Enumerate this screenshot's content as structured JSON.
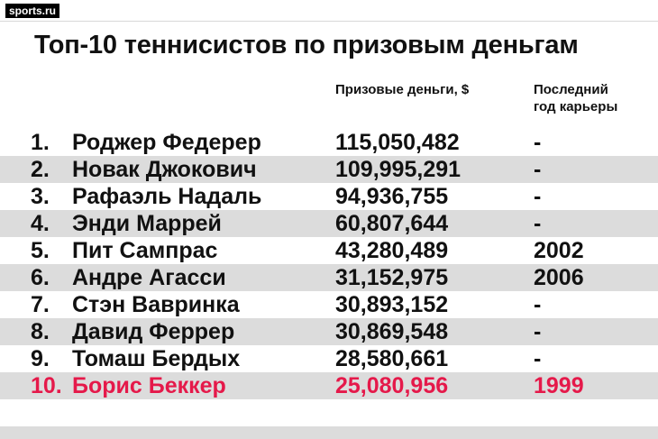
{
  "brand": {
    "logo_text": "sports.ru"
  },
  "title": "Топ-10 теннисистов по призовым деньгам",
  "columns": {
    "prize": "Призовые деньги, $",
    "last_year_line1": "Последний",
    "last_year_line2": "год карьеры"
  },
  "rows": [
    {
      "rank": "1.",
      "name": "Роджер Федерер",
      "prize": "115,050,482",
      "year": "-"
    },
    {
      "rank": "2.",
      "name": "Новак Джокович",
      "prize": "109,995,291",
      "year": "-"
    },
    {
      "rank": "3.",
      "name": "Рафаэль Надаль",
      "prize": "94,936,755",
      "year": "-"
    },
    {
      "rank": "4.",
      "name": "Энди Маррей",
      "prize": "60,807,644",
      "year": "-"
    },
    {
      "rank": "5.",
      "name": "Пит Сампрас",
      "prize": "43,280,489",
      "year": "2002"
    },
    {
      "rank": "6.",
      "name": "Андре Агасси",
      "prize": "31,152,975",
      "year": "2006"
    },
    {
      "rank": "7.",
      "name": "Стэн Вавринка",
      "prize": "30,893,152",
      "year": "-"
    },
    {
      "rank": "8.",
      "name": "Давид Феррер",
      "prize": "30,869,548",
      "year": "-"
    },
    {
      "rank": "9.",
      "name": "Томаш Бердых",
      "prize": "28,580,661",
      "year": "-"
    },
    {
      "rank": "10.",
      "name": "Борис Беккер",
      "prize": "25,080,956",
      "year": "1999"
    }
  ],
  "colors": {
    "highlight": "#e5194a",
    "stripe": "#dcdcdc"
  }
}
